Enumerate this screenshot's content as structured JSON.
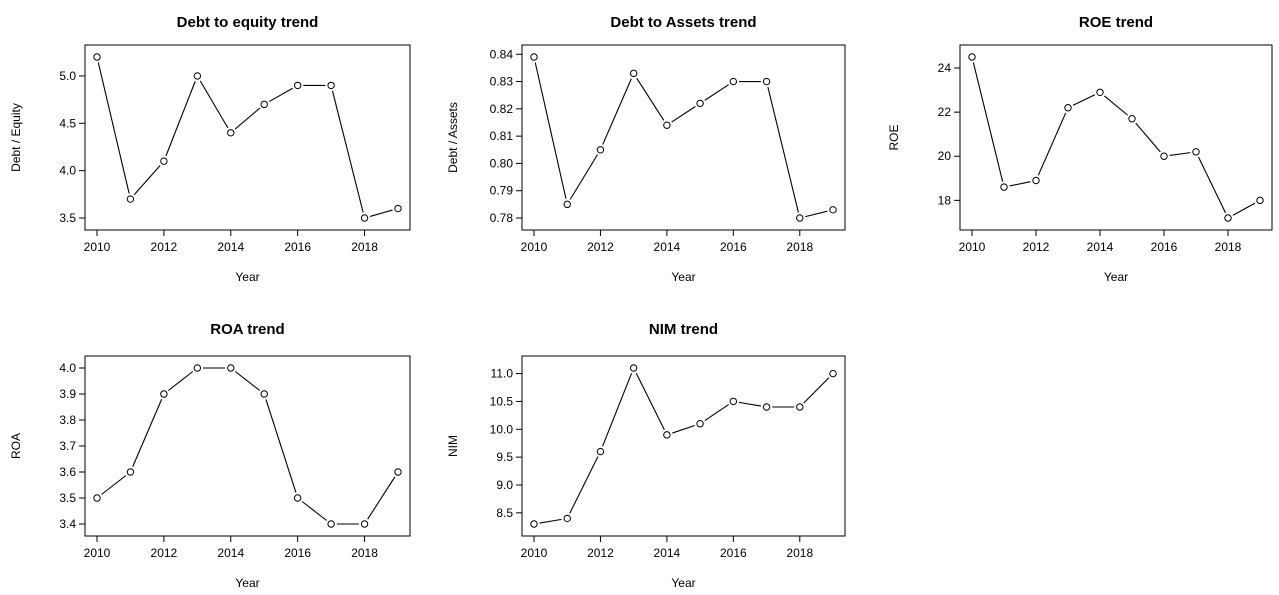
{
  "chart_data": [
    {
      "type": "line",
      "title": "Debt to equity trend",
      "xlabel": "Year",
      "ylabel": "Debt / Equity",
      "x": [
        2010,
        2011,
        2012,
        2013,
        2014,
        2015,
        2016,
        2017,
        2018,
        2019
      ],
      "values": [
        5.2,
        3.7,
        4.1,
        5.0,
        4.4,
        4.7,
        4.9,
        4.9,
        3.5,
        3.6
      ],
      "xlim": [
        2010,
        2019
      ],
      "ylim": [
        3.5,
        5.2
      ],
      "xticks": [
        2010,
        2012,
        2014,
        2016,
        2018
      ],
      "yticks": [
        3.5,
        4.0,
        4.5,
        5.0
      ],
      "ytick_labels": [
        "3.5",
        "4.0",
        "4.5",
        "5.0"
      ],
      "grid": false,
      "marker": "open-circle"
    },
    {
      "type": "line",
      "title": "Debt to Assets trend",
      "xlabel": "Year",
      "ylabel": "Debt / Assets",
      "x": [
        2010,
        2011,
        2012,
        2013,
        2014,
        2015,
        2016,
        2017,
        2018,
        2019
      ],
      "values": [
        0.839,
        0.785,
        0.805,
        0.833,
        0.814,
        0.822,
        0.83,
        0.83,
        0.78,
        0.783
      ],
      "xlim": [
        2010,
        2019
      ],
      "ylim": [
        0.78,
        0.839
      ],
      "xticks": [
        2010,
        2012,
        2014,
        2016,
        2018
      ],
      "yticks": [
        0.78,
        0.79,
        0.8,
        0.81,
        0.82,
        0.83,
        0.84
      ],
      "ytick_labels": [
        "0.78",
        "0.79",
        "0.80",
        "0.81",
        "0.82",
        "0.83",
        "0.84"
      ],
      "grid": false,
      "marker": "open-circle"
    },
    {
      "type": "line",
      "title": "ROE trend",
      "xlabel": "Year",
      "ylabel": "ROE",
      "x": [
        2010,
        2011,
        2012,
        2013,
        2014,
        2015,
        2016,
        2017,
        2018,
        2019
      ],
      "values": [
        24.5,
        18.6,
        18.9,
        22.2,
        22.9,
        21.7,
        20.0,
        20.2,
        17.2,
        18.0
      ],
      "xlim": [
        2010,
        2019
      ],
      "ylim": [
        17.2,
        24.5
      ],
      "xticks": [
        2010,
        2012,
        2014,
        2016,
        2018
      ],
      "yticks": [
        18,
        20,
        22,
        24
      ],
      "ytick_labels": [
        "18",
        "20",
        "22",
        "24"
      ],
      "grid": false,
      "marker": "open-circle"
    },
    {
      "type": "line",
      "title": "ROA trend",
      "xlabel": "Year",
      "ylabel": "ROA",
      "x": [
        2010,
        2011,
        2012,
        2013,
        2014,
        2015,
        2016,
        2017,
        2018,
        2019
      ],
      "values": [
        3.5,
        3.6,
        3.9,
        4.0,
        4.0,
        3.9,
        3.5,
        3.4,
        3.4,
        3.6
      ],
      "xlim": [
        2010,
        2019
      ],
      "ylim": [
        3.4,
        4.0
      ],
      "xticks": [
        2010,
        2012,
        2014,
        2016,
        2018
      ],
      "yticks": [
        3.4,
        3.5,
        3.6,
        3.7,
        3.8,
        3.9,
        4.0
      ],
      "ytick_labels": [
        "3.4",
        "3.5",
        "3.6",
        "3.7",
        "3.8",
        "3.9",
        "4.0"
      ],
      "grid": false,
      "marker": "open-circle"
    },
    {
      "type": "line",
      "title": "NIM trend",
      "xlabel": "Year",
      "ylabel": "NIM",
      "x": [
        2010,
        2011,
        2012,
        2013,
        2014,
        2015,
        2016,
        2017,
        2018,
        2019
      ],
      "values": [
        8.3,
        8.4,
        9.6,
        11.1,
        9.9,
        10.1,
        10.5,
        10.4,
        10.4,
        11.0
      ],
      "xlim": [
        2010,
        2019
      ],
      "ylim": [
        8.3,
        11.1
      ],
      "xticks": [
        2010,
        2012,
        2014,
        2016,
        2018
      ],
      "yticks": [
        8.5,
        9.0,
        9.5,
        10.0,
        10.5,
        11.0
      ],
      "ytick_labels": [
        "8.5",
        "9.0",
        "9.5",
        "10.0",
        "10.5",
        "11.0"
      ],
      "grid": false,
      "marker": "open-circle"
    }
  ]
}
